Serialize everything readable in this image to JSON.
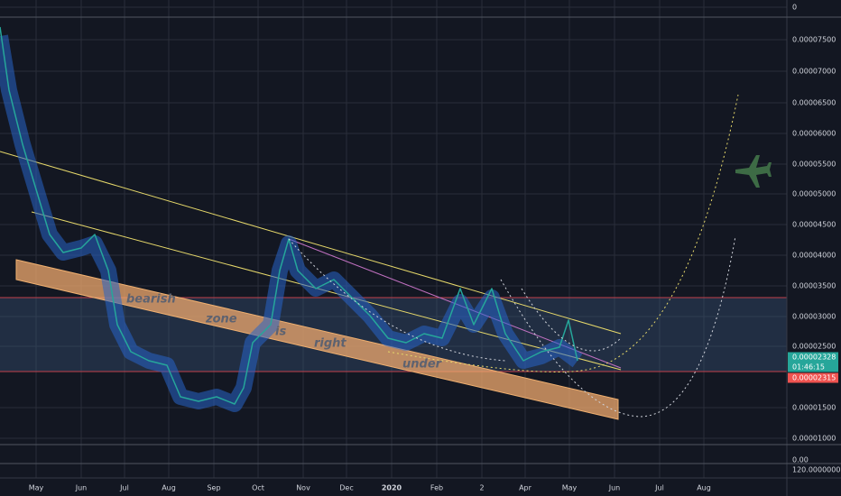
{
  "price_axis": [
    "0",
    "0.00007500",
    "0.00007000",
    "0.00006500",
    "0.00006000",
    "0.00005500",
    "0.00005000",
    "0.00004500",
    "0.00004000",
    "0.00003500",
    "0.00003000",
    "0.00002500",
    "0.00001500",
    "0.00001000",
    "0.00",
    "120.00000000"
  ],
  "time_axis": [
    "May",
    "Jun",
    "Jul",
    "Aug",
    "Sep",
    "Oct",
    "Nov",
    "Dec",
    "2020",
    "Feb",
    "2",
    "Apr",
    "May",
    "Jun",
    "Jul",
    "Aug"
  ],
  "annotations": [
    "bearish",
    "zone",
    "is",
    "right",
    "under"
  ],
  "price_tags": {
    "last_price": "0.00002328",
    "countdown": "01:46:15",
    "support": "0.00002315"
  }
}
